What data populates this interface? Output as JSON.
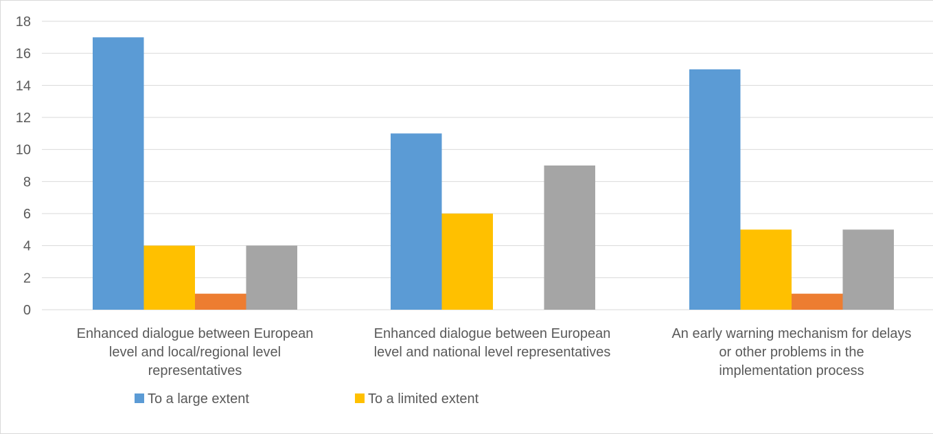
{
  "chart_data": {
    "type": "bar",
    "categories": [
      [
        "Enhanced dialogue between European",
        "level and local/regional level",
        "representatives"
      ],
      [
        "Enhanced dialogue between European",
        "level and national level representatives"
      ],
      [
        "An early warning mechanism for delays",
        "or other problems in the",
        "implementation process"
      ]
    ],
    "series": [
      {
        "name": "To a large extent",
        "color": "#5b9bd5",
        "values": [
          17,
          11,
          15
        ]
      },
      {
        "name": "To a limited extent",
        "color": "#ffc000",
        "values": [
          4,
          6,
          5
        ]
      },
      {
        "name": "",
        "color": "#ed7d31",
        "values": [
          1,
          0,
          1
        ]
      },
      {
        "name": "",
        "color": "#a5a5a5",
        "values": [
          4,
          9,
          5
        ]
      }
    ],
    "y_ticks": [
      "0",
      "2",
      "4",
      "6",
      "8",
      "10",
      "12",
      "14",
      "16",
      "18"
    ],
    "ylim": [
      0,
      18
    ],
    "grid": true,
    "legend_position": "bottom",
    "legend_items": [
      "To a large extent",
      "To a limited extent"
    ],
    "colors": {
      "gridline": "#d9d9d9",
      "text": "#595959"
    }
  }
}
